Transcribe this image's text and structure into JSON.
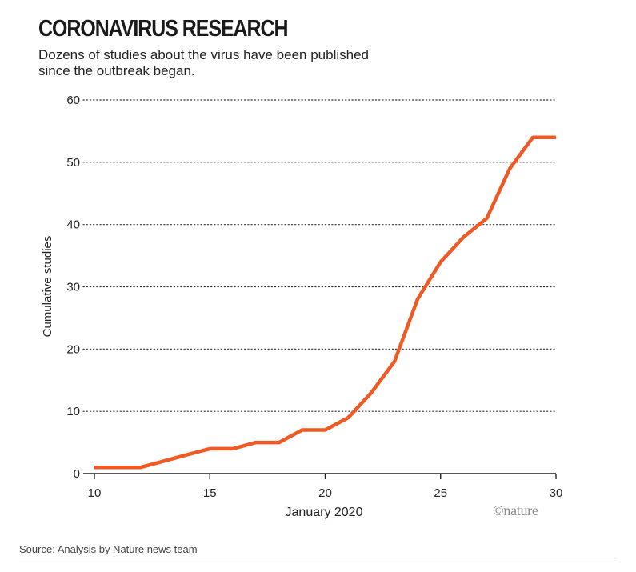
{
  "figure": {
    "title": "CORONAVIRUS RESEARCH",
    "subtitle": "Dozens of studies about the virus have been published since the outbreak began.",
    "credit": "©nature",
    "source": "Source: Analysis by Nature news team"
  },
  "colors": {
    "line": "#ee5a24",
    "grid": "#333333",
    "axis": "#222222"
  },
  "chart_data": {
    "type": "line",
    "title": "CORONAVIRUS RESEARCH",
    "xlabel": "January 2020",
    "ylabel": "Cumulative studies",
    "xlim": [
      10,
      30
    ],
    "ylim": [
      0,
      60
    ],
    "xticks": [
      10,
      15,
      20,
      25,
      30
    ],
    "yticks": [
      0,
      10,
      20,
      30,
      40,
      50,
      60
    ],
    "grid": "horizontal dotted",
    "series": [
      {
        "name": "Cumulative studies",
        "x": [
          10,
          11,
          12,
          13,
          14,
          15,
          16,
          17,
          18,
          19,
          20,
          21,
          22,
          23,
          23.5,
          24,
          25,
          26,
          27,
          28,
          29,
          30
        ],
        "values": [
          1,
          1,
          1,
          2,
          3,
          4,
          4,
          5,
          5,
          7,
          7,
          9,
          13,
          18,
          23,
          28,
          34,
          38,
          41,
          49,
          54,
          54
        ]
      }
    ]
  }
}
